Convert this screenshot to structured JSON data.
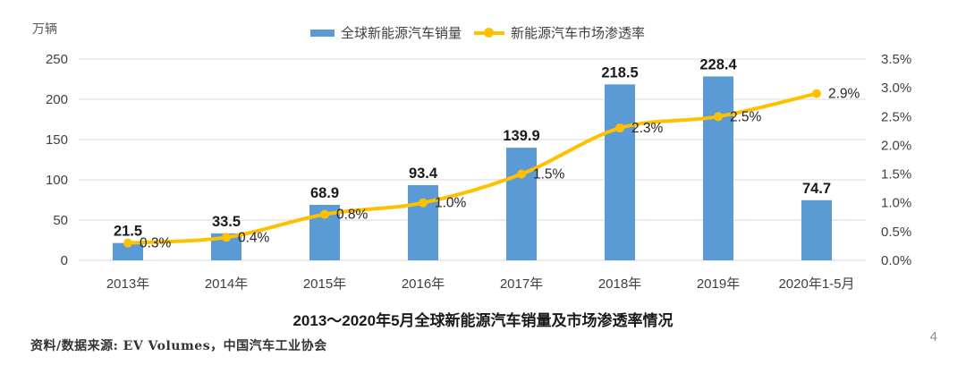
{
  "chart_data": {
    "type": "bar",
    "subtype": "combo-bar-line-dual-axis",
    "title": "2013～2020年5月全球新能源汽车销量及市场渗透率情况",
    "categories": [
      "2013年",
      "2014年",
      "2015年",
      "2016年",
      "2017年",
      "2018年",
      "2019年",
      "2020年1-5月"
    ],
    "series": [
      {
        "name": "全球新能源汽车销量",
        "type": "bar",
        "axis": "left",
        "color": "#5B9BD5",
        "values": [
          21.5,
          33.5,
          68.9,
          93.4,
          139.9,
          218.5,
          228.4,
          74.7
        ],
        "data_labels": [
          "21.5",
          "33.5",
          "68.9",
          "93.4",
          "139.9",
          "218.5",
          "228.4",
          "74.7"
        ]
      },
      {
        "name": "新能源汽车市场渗透率",
        "type": "line",
        "axis": "right",
        "color": "#FFC000",
        "values": [
          0.3,
          0.4,
          0.8,
          1.0,
          1.5,
          2.3,
          2.5,
          2.9
        ],
        "data_labels": [
          "0.3%",
          "0.4%",
          "0.8%",
          "1.0%",
          "1.5%",
          "2.3%",
          "2.5%",
          "2.9%"
        ]
      }
    ],
    "left_axis": {
      "unit": "万辆",
      "min": 0,
      "max": 250,
      "ticks": [
        0,
        50,
        100,
        150,
        200,
        250
      ]
    },
    "right_axis": {
      "min": 0,
      "max": 3.5,
      "ticks": [
        "0.0%",
        "0.5%",
        "1.0%",
        "1.5%",
        "2.0%",
        "2.5%",
        "3.0%",
        "3.5%"
      ]
    },
    "grid": "horizontal",
    "grid_color": "#D9D9D9",
    "legend_position": "top"
  },
  "footer": {
    "source": "资料/数据来源: EV Volumes，中国汽车工业协会",
    "page_number": "4"
  }
}
